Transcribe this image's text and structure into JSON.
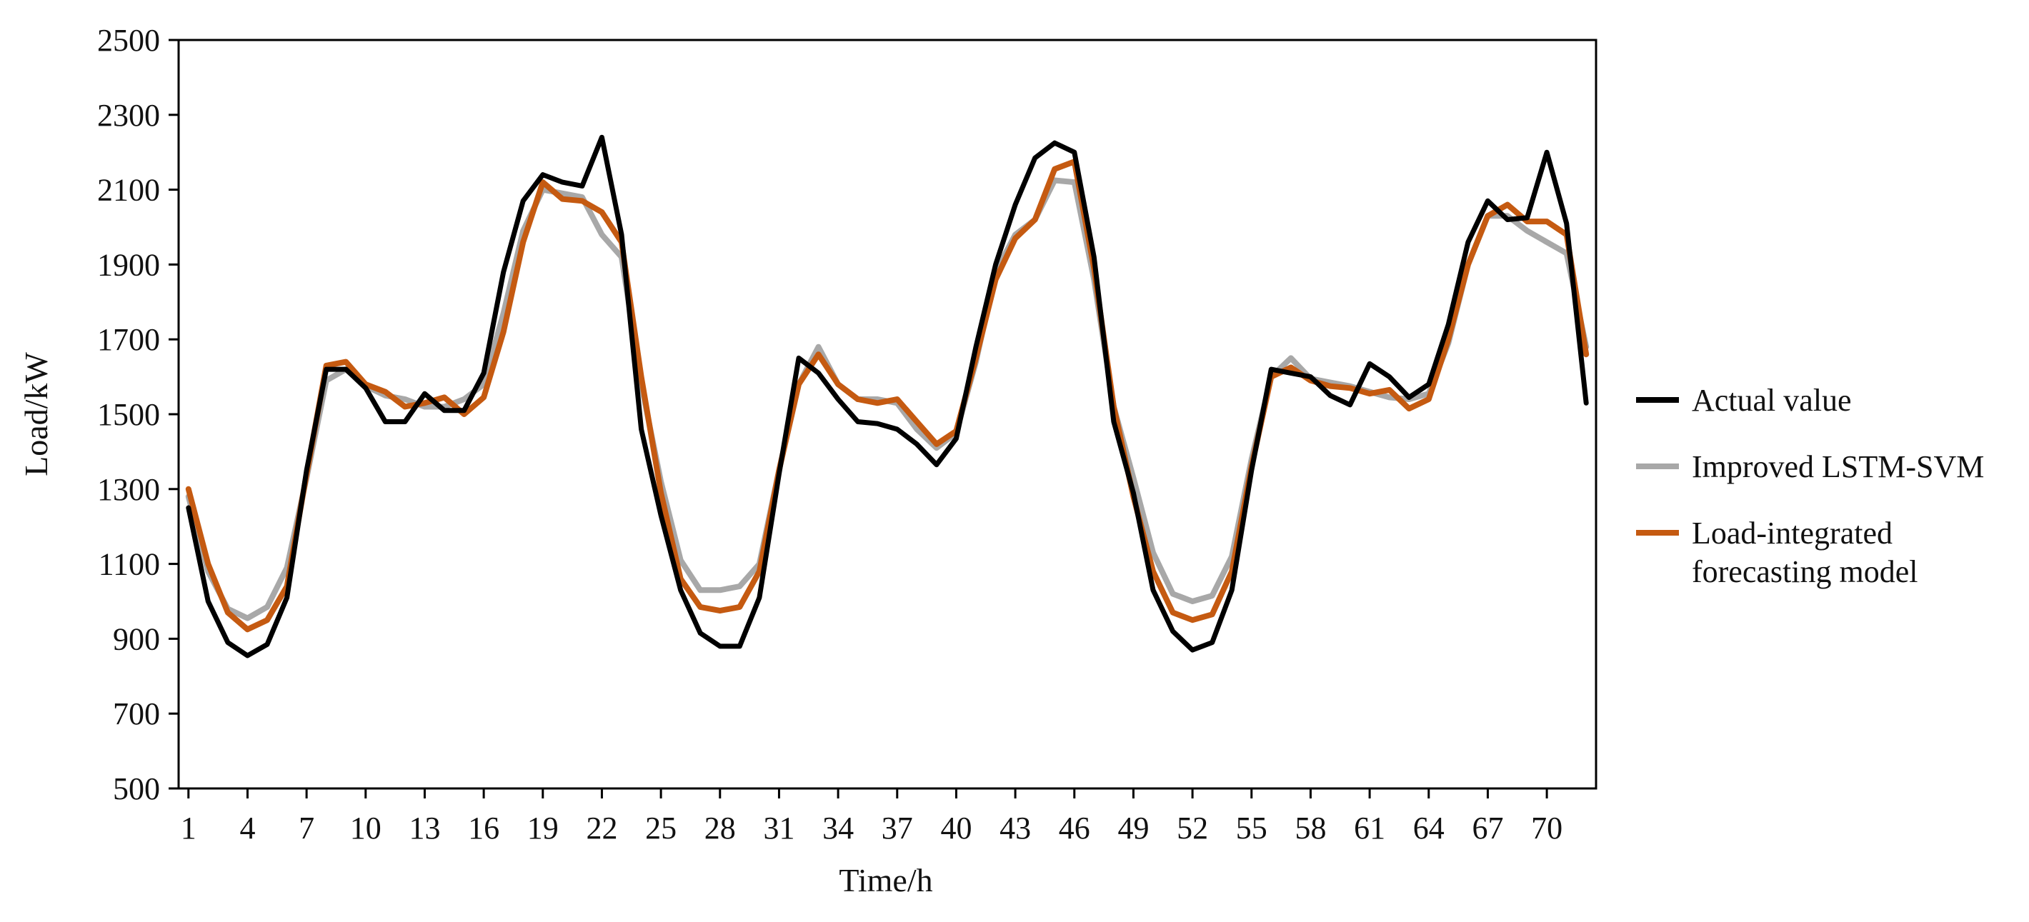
{
  "chart_data": {
    "type": "line",
    "title": "",
    "xlabel": "Time/h",
    "ylabel": "Load/kW",
    "x": [
      1,
      2,
      3,
      4,
      5,
      6,
      7,
      8,
      9,
      10,
      11,
      12,
      13,
      14,
      15,
      16,
      17,
      18,
      19,
      20,
      21,
      22,
      23,
      24,
      25,
      26,
      27,
      28,
      29,
      30,
      31,
      32,
      33,
      34,
      35,
      36,
      37,
      38,
      39,
      40,
      41,
      42,
      43,
      44,
      45,
      46,
      47,
      48,
      49,
      50,
      51,
      52,
      53,
      54,
      55,
      56,
      57,
      58,
      59,
      60,
      61,
      62,
      63,
      64,
      65,
      66,
      67,
      68,
      69,
      70,
      71,
      72
    ],
    "x_ticks": [
      1,
      4,
      7,
      10,
      13,
      16,
      19,
      22,
      25,
      28,
      31,
      34,
      37,
      40,
      43,
      46,
      49,
      52,
      55,
      58,
      61,
      64,
      67,
      70
    ],
    "x_tick_labels": [
      "1",
      "4",
      "7",
      "10",
      "13",
      "16",
      "19",
      "22",
      "25",
      "28",
      "31",
      "34",
      "37",
      "40",
      "43",
      "46",
      "49",
      "52",
      "55",
      "58",
      "61",
      "64",
      "67",
      "70"
    ],
    "xlim": [
      0.5,
      72.5
    ],
    "ylim": [
      500,
      2500
    ],
    "y_ticks": [
      500,
      700,
      900,
      1100,
      1300,
      1500,
      1700,
      1900,
      2100,
      2300,
      2500
    ],
    "y_tick_labels": [
      "500",
      "700",
      "900",
      "1100",
      "1300",
      "1500",
      "1700",
      "1900",
      "2100",
      "2300",
      "2500"
    ],
    "grid": false,
    "legend_position": "right",
    "series": [
      {
        "name": "Actual value",
        "color": "#000000",
        "values": [
          1250,
          1000,
          890,
          855,
          885,
          1010,
          1350,
          1620,
          1620,
          1570,
          1480,
          1480,
          1555,
          1510,
          1510,
          1610,
          1880,
          2070,
          2140,
          2120,
          2110,
          2240,
          1980,
          1460,
          1230,
          1030,
          915,
          880,
          880,
          1010,
          1340,
          1650,
          1610,
          1540,
          1480,
          1475,
          1460,
          1420,
          1365,
          1435,
          1680,
          1900,
          2060,
          2185,
          2225,
          2200,
          1920,
          1480,
          1290,
          1030,
          920,
          870,
          890,
          1030,
          1350,
          1620,
          1610,
          1600,
          1550,
          1525,
          1635,
          1600,
          1545,
          1580,
          1740,
          1960,
          2070,
          2020,
          2025,
          2200,
          2010,
          1530
        ]
      },
      {
        "name": "Improved LSTM-SVM",
        "color": "#a8a8a8",
        "values": [
          1280,
          1080,
          980,
          955,
          985,
          1090,
          1330,
          1590,
          1620,
          1575,
          1550,
          1540,
          1520,
          1520,
          1540,
          1580,
          1770,
          1990,
          2100,
          2090,
          2080,
          1980,
          1920,
          1580,
          1320,
          1110,
          1030,
          1030,
          1040,
          1100,
          1350,
          1580,
          1680,
          1580,
          1540,
          1540,
          1530,
          1460,
          1410,
          1450,
          1640,
          1880,
          1980,
          2020,
          2125,
          2120,
          1860,
          1520,
          1330,
          1130,
          1020,
          1000,
          1015,
          1120,
          1380,
          1600,
          1650,
          1595,
          1585,
          1575,
          1560,
          1545,
          1540,
          1555,
          1690,
          1900,
          2030,
          2030,
          1990,
          1960,
          1930,
          1680
        ]
      },
      {
        "name": "Load-integrated\nforecasting model",
        "color": "#c55a11",
        "values": [
          1300,
          1100,
          970,
          925,
          950,
          1040,
          1340,
          1630,
          1640,
          1580,
          1560,
          1520,
          1530,
          1545,
          1500,
          1545,
          1720,
          1960,
          2120,
          2075,
          2070,
          2040,
          1960,
          1600,
          1290,
          1060,
          985,
          975,
          985,
          1080,
          1350,
          1580,
          1660,
          1580,
          1540,
          1530,
          1540,
          1480,
          1420,
          1455,
          1650,
          1860,
          1970,
          2020,
          2155,
          2175,
          1890,
          1520,
          1280,
          1080,
          970,
          950,
          965,
          1080,
          1360,
          1600,
          1625,
          1590,
          1575,
          1570,
          1555,
          1565,
          1515,
          1540,
          1700,
          1900,
          2030,
          2060,
          2015,
          2015,
          1980,
          1660
        ]
      }
    ]
  }
}
